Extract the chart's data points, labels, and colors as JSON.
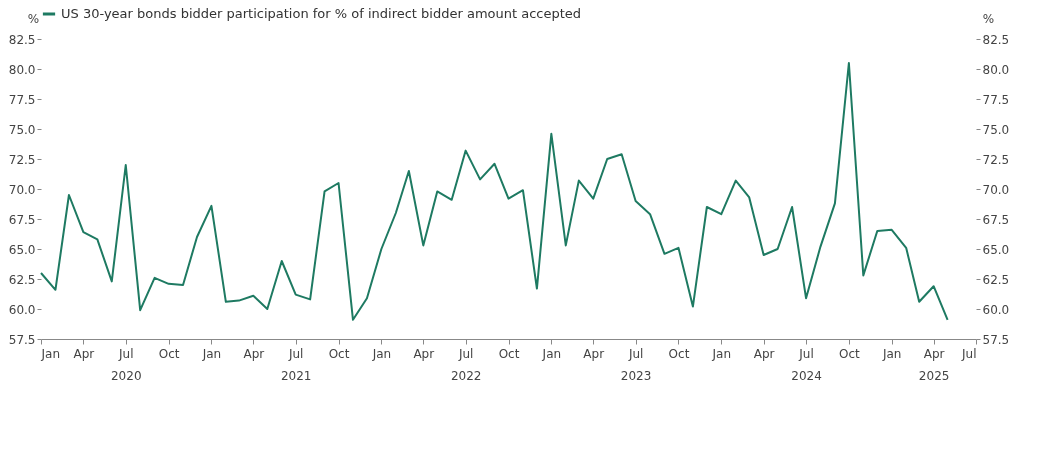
{
  "chart_data": {
    "type": "line",
    "x": [
      "2020-01",
      "2020-02",
      "2020-03",
      "2020-04",
      "2020-05",
      "2020-06",
      "2020-07",
      "2020-08",
      "2020-09",
      "2020-10",
      "2020-11",
      "2020-12",
      "2021-01",
      "2021-02",
      "2021-03",
      "2021-04",
      "2021-05",
      "2021-06",
      "2021-07",
      "2021-08",
      "2021-09",
      "2021-10",
      "2021-11",
      "2021-12",
      "2022-01",
      "2022-02",
      "2022-03",
      "2022-04",
      "2022-05",
      "2022-06",
      "2022-07",
      "2022-08",
      "2022-09",
      "2022-10",
      "2022-11",
      "2022-12",
      "2023-01",
      "2023-02",
      "2023-03",
      "2023-04",
      "2023-05",
      "2023-06",
      "2023-07",
      "2023-08",
      "2023-09",
      "2023-10",
      "2023-11",
      "2023-12",
      "2024-01",
      "2024-02",
      "2024-03",
      "2024-04",
      "2024-05",
      "2024-06",
      "2024-07",
      "2024-08",
      "2024-09",
      "2024-10",
      "2024-11",
      "2024-12",
      "2025-01",
      "2025-02",
      "2025-03",
      "2025-04",
      "2025-05"
    ],
    "series": [
      {
        "name": "US 30-year bonds bidder participation for % of indirect bidder amount accepted",
        "color": "#1e7a62",
        "values": [
          63.0,
          61.6,
          69.5,
          66.4,
          65.8,
          62.3,
          72.0,
          59.9,
          62.6,
          62.1,
          62.0,
          66.0,
          68.6,
          60.6,
          60.7,
          61.1,
          60.0,
          64.0,
          61.2,
          60.8,
          69.8,
          70.5,
          59.1,
          60.9,
          65.0,
          68.0,
          71.5,
          65.3,
          69.8,
          69.1,
          73.2,
          70.8,
          72.1,
          69.2,
          69.9,
          61.7,
          74.6,
          65.3,
          70.7,
          69.2,
          72.5,
          72.9,
          69.0,
          67.9,
          64.6,
          65.1,
          60.2,
          68.5,
          67.9,
          70.7,
          69.3,
          64.5,
          65.0,
          68.5,
          60.9,
          65.2,
          68.8,
          80.5,
          62.8,
          66.5,
          66.6,
          65.1,
          60.6,
          61.9,
          59.1
        ]
      }
    ],
    "ylabel": "%",
    "y2label": "%",
    "ylim": [
      57.5,
      82.5
    ],
    "yticks": [
      {
        "value": 57.5,
        "label": "57.5"
      },
      {
        "value": 60,
        "label": "60.0"
      },
      {
        "value": 62.5,
        "label": "62.5"
      },
      {
        "value": 65,
        "label": "65.0"
      },
      {
        "value": 67.5,
        "label": "67.5"
      },
      {
        "value": 70,
        "label": "70.0"
      },
      {
        "value": 72.5,
        "label": "72.5"
      },
      {
        "value": 75,
        "label": "75.0"
      },
      {
        "value": 77.5,
        "label": "77.5"
      },
      {
        "value": 80,
        "label": "80.0"
      },
      {
        "value": 82.5,
        "label": "82.5"
      }
    ],
    "y2lim": [
      57.5,
      82.5
    ],
    "y2ticks": [
      {
        "value": 57.5,
        "label": "57.5"
      },
      {
        "value": 60,
        "label": "60.0"
      },
      {
        "value": 62.5,
        "label": "62.5"
      },
      {
        "value": 65,
        "label": "65.0"
      },
      {
        "value": 67.5,
        "label": "67.5"
      },
      {
        "value": 70,
        "label": "70.0"
      },
      {
        "value": 72.5,
        "label": "72.5"
      },
      {
        "value": 75,
        "label": "75.0"
      },
      {
        "value": 77.5,
        "label": "77.5"
      },
      {
        "value": 80,
        "label": "80.0"
      },
      {
        "value": 82.5,
        "label": "82.5"
      }
    ],
    "xlim": [
      "2020-01",
      "2025-07"
    ],
    "xticks": [
      {
        "value": "2020-01",
        "label": "Jan"
      },
      {
        "value": "2020-04",
        "label": "Apr"
      },
      {
        "value": "2020-07",
        "label": "Jul\n2020"
      },
      {
        "value": "2020-10",
        "label": "Oct"
      },
      {
        "value": "2021-01",
        "label": "Jan"
      },
      {
        "value": "2021-04",
        "label": "Apr"
      },
      {
        "value": "2021-07",
        "label": "Jul\n2021"
      },
      {
        "value": "2021-10",
        "label": "Oct"
      },
      {
        "value": "2022-01",
        "label": "Jan"
      },
      {
        "value": "2022-04",
        "label": "Apr"
      },
      {
        "value": "2022-07",
        "label": "Jul\n2022"
      },
      {
        "value": "2022-10",
        "label": "Oct"
      },
      {
        "value": "2023-01",
        "label": "Jan"
      },
      {
        "value": "2023-04",
        "label": "Apr"
      },
      {
        "value": "2023-07",
        "label": "Jul\n2023"
      },
      {
        "value": "2023-10",
        "label": "Oct"
      },
      {
        "value": "2024-01",
        "label": "Jan"
      },
      {
        "value": "2024-04",
        "label": "Apr"
      },
      {
        "value": "2024-07",
        "label": "Jul\n2024"
      },
      {
        "value": "2024-10",
        "label": "Oct"
      },
      {
        "value": "2025-01",
        "label": "Jan"
      },
      {
        "value": "2025-04",
        "label": "Apr\n2025"
      },
      {
        "value": "2025-07",
        "label": "Jul"
      }
    ],
    "grid": false,
    "legend": "top",
    "marker": "none",
    "line_style": "solid"
  }
}
